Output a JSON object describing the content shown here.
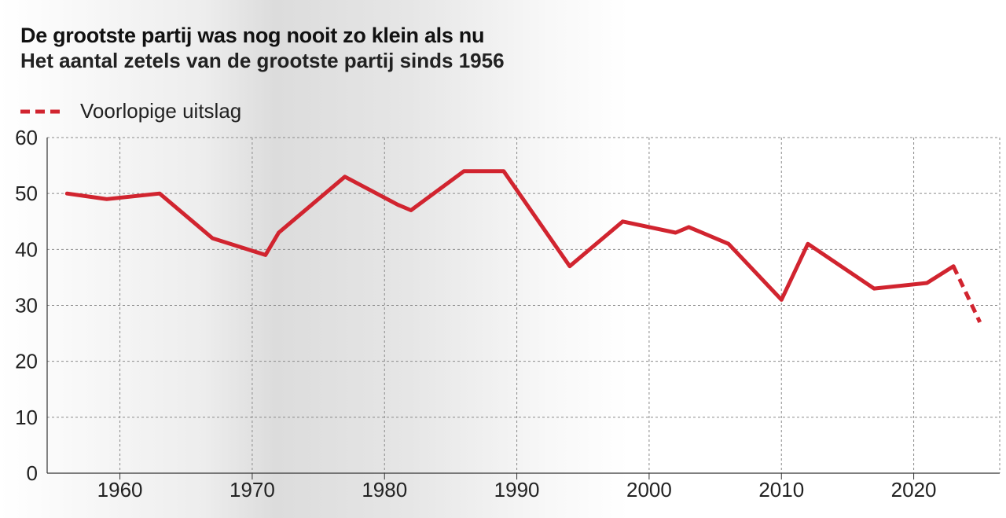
{
  "chart_data": {
    "type": "line",
    "title": "De grootste partij was nog nooit zo klein als nu",
    "subtitle": "Het aantal zetels van de grootste partij sinds 1956",
    "xlabel": "",
    "ylabel": "",
    "xlim": [
      1954.5,
      2026.5
    ],
    "ylim": [
      0,
      60
    ],
    "x_ticks": [
      1960,
      1970,
      1980,
      1990,
      2000,
      2010,
      2020
    ],
    "y_ticks": [
      0,
      10,
      20,
      30,
      40,
      50,
      60
    ],
    "grid": true,
    "legend_position": "top-left",
    "series": [
      {
        "style": "solid",
        "color": "#d1242f",
        "points": [
          {
            "x": 1956,
            "y": 50
          },
          {
            "x": 1959,
            "y": 49
          },
          {
            "x": 1963,
            "y": 50
          },
          {
            "x": 1967,
            "y": 42
          },
          {
            "x": 1971,
            "y": 39
          },
          {
            "x": 1972,
            "y": 43
          },
          {
            "x": 1977,
            "y": 53
          },
          {
            "x": 1981,
            "y": 48
          },
          {
            "x": 1982,
            "y": 47
          },
          {
            "x": 1986,
            "y": 54
          },
          {
            "x": 1989,
            "y": 54
          },
          {
            "x": 1994,
            "y": 37
          },
          {
            "x": 1998,
            "y": 45
          },
          {
            "x": 2002,
            "y": 43
          },
          {
            "x": 2003,
            "y": 44
          },
          {
            "x": 2006,
            "y": 41
          },
          {
            "x": 2010,
            "y": 31
          },
          {
            "x": 2012,
            "y": 41
          },
          {
            "x": 2017,
            "y": 33
          },
          {
            "x": 2021,
            "y": 34
          },
          {
            "x": 2023,
            "y": 37
          }
        ]
      },
      {
        "name": "Voorlopige uitslag",
        "style": "dashed",
        "color": "#d1242f",
        "points": [
          {
            "x": 2023,
            "y": 37
          },
          {
            "x": 2025,
            "y": 27
          }
        ]
      }
    ]
  }
}
